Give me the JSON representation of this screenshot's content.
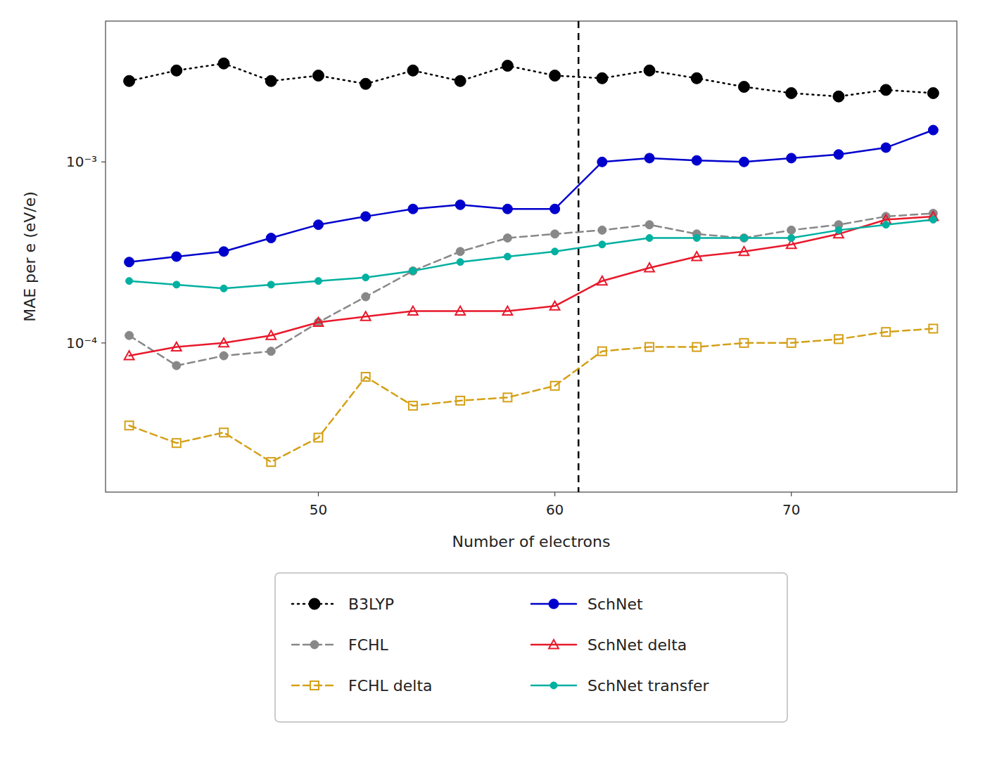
{
  "chart_data": {
    "type": "line",
    "xlabel": "Number of electrons",
    "ylabel": "MAE per e (eV/e)",
    "log": "y",
    "grid": false,
    "legend": "bottom",
    "x": [
      42,
      44,
      46,
      48,
      50,
      52,
      54,
      56,
      58,
      60,
      62,
      64,
      66,
      68,
      70,
      72,
      74,
      76
    ],
    "xlim": [
      41,
      77
    ],
    "xticks": [
      50,
      60,
      70
    ],
    "ylim": [
      1.5e-05,
      0.006
    ],
    "yticks": [
      {
        "value": 0.0001,
        "label": "10⁻⁴"
      },
      {
        "value": 0.001,
        "label": "10⁻³"
      }
    ],
    "vline_x": 61,
    "series": [
      {
        "name": "B3LYP",
        "color": "#000000",
        "marker": "circle",
        "line_style": "dotted",
        "values": [
          0.0028,
          0.0032,
          0.0035,
          0.0028,
          0.003,
          0.0027,
          0.0032,
          0.0028,
          0.0034,
          0.003,
          0.0029,
          0.0032,
          0.0029,
          0.0026,
          0.0024,
          0.0023,
          0.0025,
          0.0024
        ]
      },
      {
        "name": "SchNet",
        "color": "#0000cc",
        "marker": "circle",
        "line_style": "solid",
        "values": [
          0.00028,
          0.0003,
          0.00032,
          0.00038,
          0.00045,
          0.0005,
          0.00055,
          0.00058,
          0.00055,
          0.00055,
          0.001,
          0.00105,
          0.00102,
          0.001,
          0.00105,
          0.0011,
          0.0012,
          0.0015
        ]
      },
      {
        "name": "FCHL",
        "color": "#888888",
        "marker": "circle",
        "line_style": "dashed",
        "values": [
          0.00011,
          7.5e-05,
          8.5e-05,
          9e-05,
          0.00013,
          0.00018,
          0.00025,
          0.00032,
          0.00038,
          0.0004,
          0.00042,
          0.00045,
          0.0004,
          0.00038,
          0.00042,
          0.00045,
          0.0005,
          0.00052
        ]
      },
      {
        "name": "SchNet delta",
        "color": "#e8192c",
        "marker": "triangle-open",
        "line_style": "solid",
        "values": [
          8.5e-05,
          9.5e-05,
          0.0001,
          0.00011,
          0.00013,
          0.00014,
          0.00015,
          0.00015,
          0.00015,
          0.00016,
          0.00022,
          0.00026,
          0.0003,
          0.00032,
          0.00035,
          0.0004,
          0.00048,
          0.0005
        ]
      },
      {
        "name": "FCHL delta",
        "color": "#d4a017",
        "marker": "square-open",
        "line_style": "dashed",
        "values": [
          3.5e-05,
          2.8e-05,
          3.2e-05,
          2.2e-05,
          3e-05,
          6.5e-05,
          4.5e-05,
          4.8e-05,
          5e-05,
          5.8e-05,
          9e-05,
          9.5e-05,
          9.5e-05,
          0.0001,
          0.0001,
          0.000105,
          0.000115,
          0.00012
        ]
      },
      {
        "name": "SchNet transfer",
        "color": "#00b0a0",
        "marker": "circle",
        "line_style": "solid",
        "values": [
          0.00022,
          0.00021,
          0.0002,
          0.00021,
          0.00022,
          0.00023,
          0.00025,
          0.00028,
          0.0003,
          0.00032,
          0.00035,
          0.00038,
          0.00038,
          0.00038,
          0.00038,
          0.00042,
          0.00045,
          0.00048
        ]
      }
    ]
  }
}
